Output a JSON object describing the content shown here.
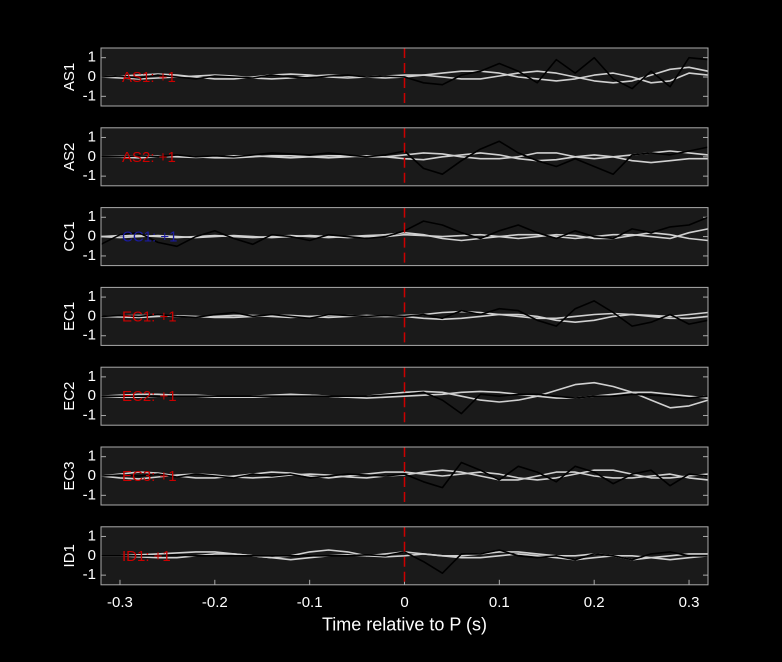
{
  "chart_data": [
    {
      "type": "line",
      "ylabel": "AS1",
      "annotation": "AS1: +1",
      "annotation_color": "#cc0000",
      "marker_x": 0,
      "marker_color": "#cc0000",
      "x": [
        -0.32,
        -0.3,
        -0.28,
        -0.26,
        -0.24,
        -0.22,
        -0.2,
        -0.18,
        -0.16,
        -0.14,
        -0.12,
        -0.1,
        -0.08,
        -0.06,
        -0.04,
        -0.02,
        0,
        0.02,
        0.04,
        0.06,
        0.08,
        0.1,
        0.12,
        0.14,
        0.16,
        0.18,
        0.2,
        0.22,
        0.24,
        0.26,
        0.28,
        0.3,
        0.32
      ],
      "series": [
        {
          "color": "#d0d0d0",
          "values": [
            0,
            0.05,
            0.1,
            0.15,
            0.1,
            0,
            -0.1,
            -0.1,
            0,
            0.1,
            0.15,
            0.1,
            0,
            -0.05,
            0,
            0.05,
            0.1,
            0.1,
            0,
            -0.1,
            -0.1,
            0.05,
            0.2,
            0.3,
            0.2,
            0,
            -0.2,
            -0.3,
            -0.2,
            0.1,
            0.4,
            0.5,
            0.3
          ]
        },
        {
          "color": "#d0d0d0",
          "values": [
            0,
            -0.05,
            -0.1,
            -0.05,
            0,
            0.05,
            0.1,
            0.05,
            -0.05,
            -0.1,
            -0.05,
            0.05,
            0.1,
            0.05,
            0,
            -0.05,
            0,
            0.1,
            0.2,
            0.3,
            0.3,
            0.2,
            0,
            -0.1,
            -0.2,
            -0.1,
            0.1,
            0.2,
            0,
            -0.3,
            -0.2,
            0.2,
            0.1
          ]
        },
        {
          "color": "#000000",
          "values": [
            0,
            0.05,
            -0.05,
            0.1,
            0,
            -0.1,
            0.05,
            0,
            -0.05,
            0.1,
            0,
            -0.05,
            0.05,
            0.1,
            0,
            0.05,
            0,
            -0.3,
            -0.4,
            0.1,
            0.3,
            0.7,
            0.3,
            -0.3,
            0.9,
            0.2,
            1.0,
            -0.1,
            -0.6,
            0.3,
            -0.5,
            1.0,
            0.9
          ]
        }
      ],
      "xlim": [
        -0.32,
        0.32
      ],
      "ylim": [
        -1.5,
        1.5
      ],
      "yticks": [
        -1,
        0,
        1
      ]
    },
    {
      "type": "line",
      "ylabel": "AS2",
      "annotation": "AS2: +1",
      "annotation_color": "#cc0000",
      "marker_x": 0,
      "marker_color": "#cc0000",
      "x": [
        -0.32,
        -0.3,
        -0.28,
        -0.26,
        -0.24,
        -0.22,
        -0.2,
        -0.18,
        -0.16,
        -0.14,
        -0.12,
        -0.1,
        -0.08,
        -0.06,
        -0.04,
        -0.02,
        0,
        0.02,
        0.04,
        0.06,
        0.08,
        0.1,
        0.12,
        0.14,
        0.16,
        0.18,
        0.2,
        0.22,
        0.24,
        0.26,
        0.28,
        0.3,
        0.32
      ],
      "series": [
        {
          "color": "#d0d0d0",
          "values": [
            0,
            0.02,
            0.05,
            0.03,
            0,
            -0.03,
            0,
            0.05,
            0.05,
            0,
            -0.05,
            0,
            0.05,
            0.05,
            0,
            0,
            0.1,
            0.2,
            0.15,
            0,
            -0.1,
            -0.1,
            0,
            0.2,
            0.2,
            0,
            -0.1,
            0,
            0.1,
            0.2,
            0.3,
            0.2,
            0.1
          ]
        },
        {
          "color": "#d0d0d0",
          "values": [
            0,
            -0.02,
            -0.05,
            0,
            0.03,
            0,
            -0.05,
            -0.05,
            0,
            0.05,
            0.05,
            0,
            -0.05,
            0,
            0.05,
            0,
            -0.1,
            -0.15,
            0,
            0.1,
            0.2,
            0.1,
            -0.1,
            -0.2,
            -0.15,
            0,
            0.1,
            0,
            -0.2,
            -0.3,
            -0.2,
            -0.1,
            -0.1
          ]
        },
        {
          "color": "#000000",
          "values": [
            0,
            0,
            0.05,
            0,
            0.1,
            0,
            0.05,
            0,
            0.1,
            0.2,
            0.15,
            0.1,
            0.2,
            0.1,
            0,
            0.1,
            0.3,
            -0.6,
            -0.9,
            -0.2,
            0.4,
            0.8,
            0.2,
            -0.2,
            -0.5,
            -0.1,
            -0.5,
            -0.9,
            0.1,
            0.2,
            0.1,
            0.3,
            0.5
          ]
        }
      ],
      "xlim": [
        -0.32,
        0.32
      ],
      "ylim": [
        -1.5,
        1.5
      ],
      "yticks": [
        -1,
        0,
        1
      ]
    },
    {
      "type": "line",
      "ylabel": "CC1",
      "annotation": "CC1: +1",
      "annotation_color": "#1a1aa0",
      "marker_x": 0,
      "marker_color": "#cc0000",
      "x": [
        -0.32,
        -0.3,
        -0.28,
        -0.26,
        -0.24,
        -0.22,
        -0.2,
        -0.18,
        -0.16,
        -0.14,
        -0.12,
        -0.1,
        -0.08,
        -0.06,
        -0.04,
        -0.02,
        0,
        0.02,
        0.04,
        0.06,
        0.08,
        0.1,
        0.12,
        0.14,
        0.16,
        0.18,
        0.2,
        0.22,
        0.24,
        0.26,
        0.28,
        0.3,
        0.32
      ],
      "series": [
        {
          "color": "#d0d0d0",
          "values": [
            0,
            0.05,
            0.05,
            0,
            -0.05,
            0,
            0.05,
            0,
            -0.05,
            0,
            0.05,
            0,
            -0.05,
            0,
            0.05,
            0.1,
            0.2,
            0.1,
            -0.1,
            -0.2,
            -0.1,
            0,
            0.1,
            0.1,
            0,
            -0.1,
            0,
            0.1,
            0.1,
            0,
            -0.1,
            0.2,
            0.4
          ]
        },
        {
          "color": "#d0d0d0",
          "values": [
            0,
            -0.05,
            0,
            0.05,
            0,
            -0.05,
            0,
            0.05,
            0,
            -0.05,
            0,
            0.05,
            0,
            -0.05,
            0,
            0,
            0.1,
            0.05,
            0,
            0.05,
            0.1,
            0,
            -0.1,
            0,
            0.1,
            0.05,
            -0.1,
            -0.1,
            0.05,
            0.2,
            0.1,
            -0.1,
            -0.2
          ]
        },
        {
          "color": "#000000",
          "values": [
            -0.4,
            0.1,
            0.2,
            -0.3,
            -0.5,
            0,
            0.3,
            -0.1,
            -0.4,
            0.1,
            0,
            -0.2,
            0.1,
            0,
            -0.1,
            0,
            0.3,
            0.8,
            0.6,
            0.2,
            -0.1,
            0.3,
            0.6,
            0.2,
            -0.1,
            0.3,
            0,
            -0.1,
            0.4,
            0.2,
            0.5,
            0.6,
            1.0
          ]
        }
      ],
      "xlim": [
        -0.32,
        0.32
      ],
      "ylim": [
        -1.5,
        1.5
      ],
      "yticks": [
        -1,
        0,
        1
      ]
    },
    {
      "type": "line",
      "ylabel": "EC1",
      "annotation": "EC1: +1",
      "annotation_color": "#cc0000",
      "marker_x": 0,
      "marker_color": "#cc0000",
      "x": [
        -0.32,
        -0.3,
        -0.28,
        -0.26,
        -0.24,
        -0.22,
        -0.2,
        -0.18,
        -0.16,
        -0.14,
        -0.12,
        -0.1,
        -0.08,
        -0.06,
        -0.04,
        -0.02,
        0,
        0.02,
        0.04,
        0.06,
        0.08,
        0.1,
        0.12,
        0.14,
        0.16,
        0.18,
        0.2,
        0.22,
        0.24,
        0.26,
        0.28,
        0.3,
        0.32
      ],
      "series": [
        {
          "color": "#d0d0d0",
          "values": [
            0,
            0.03,
            0.05,
            0.03,
            0,
            -0.03,
            0,
            0.05,
            0.05,
            0,
            -0.05,
            0,
            0.05,
            0.05,
            0,
            0,
            0.05,
            0.1,
            0.2,
            0.25,
            0.2,
            0.1,
            0,
            -0.1,
            -0.1,
            0,
            0.1,
            0.15,
            0.1,
            0,
            -0.1,
            -0.1,
            0
          ]
        },
        {
          "color": "#d0d0d0",
          "values": [
            0,
            -0.03,
            -0.05,
            0,
            0.03,
            0,
            -0.05,
            -0.05,
            0,
            0.05,
            0.05,
            0,
            -0.05,
            0,
            0.05,
            0,
            0,
            -0.1,
            -0.15,
            -0.1,
            0,
            0.1,
            0.1,
            0,
            -0.2,
            -0.3,
            -0.2,
            0,
            0.1,
            0.05,
            0,
            0.1,
            0.2
          ]
        },
        {
          "color": "#000000",
          "values": [
            0,
            0.05,
            0,
            0.1,
            0,
            -0.05,
            0.1,
            0.2,
            0,
            0.1,
            0,
            -0.1,
            0.1,
            0.05,
            0,
            0.05,
            0,
            0.1,
            -0.1,
            0.3,
            0.1,
            0.4,
            0.3,
            -0.2,
            -0.5,
            0.4,
            0.8,
            0.2,
            -0.5,
            -0.3,
            0.1,
            -0.4,
            -0.2
          ]
        }
      ],
      "xlim": [
        -0.32,
        0.32
      ],
      "ylim": [
        -1.5,
        1.5
      ],
      "yticks": [
        -1,
        0,
        1
      ]
    },
    {
      "type": "line",
      "ylabel": "EC2",
      "annotation": "EC2: +1",
      "annotation_color": "#cc0000",
      "marker_x": 0,
      "marker_color": "#cc0000",
      "x": [
        -0.32,
        -0.3,
        -0.28,
        -0.26,
        -0.24,
        -0.22,
        -0.2,
        -0.18,
        -0.16,
        -0.14,
        -0.12,
        -0.1,
        -0.08,
        -0.06,
        -0.04,
        -0.02,
        0,
        0.02,
        0.04,
        0.06,
        0.08,
        0.1,
        0.12,
        0.14,
        0.16,
        0.18,
        0.2,
        0.22,
        0.24,
        0.26,
        0.28,
        0.3,
        0.32
      ],
      "series": [
        {
          "color": "#d0d0d0",
          "values": [
            0,
            0.05,
            0.1,
            0.1,
            0.05,
            0,
            -0.05,
            -0.05,
            0,
            0.05,
            0.1,
            0.05,
            0,
            -0.05,
            0,
            0.1,
            0.2,
            0.25,
            0.2,
            0,
            -0.2,
            -0.3,
            -0.2,
            0,
            0.3,
            0.6,
            0.7,
            0.5,
            0.2,
            -0.2,
            -0.6,
            -0.5,
            -0.2
          ]
        },
        {
          "color": "#d0d0d0",
          "values": [
            0,
            -0.05,
            -0.05,
            0,
            0.05,
            0.05,
            0,
            -0.05,
            -0.05,
            0,
            0.05,
            0.05,
            0,
            -0.05,
            -0.1,
            -0.05,
            0,
            0.05,
            0.1,
            0.2,
            0.25,
            0.2,
            0.1,
            0,
            -0.1,
            -0.1,
            0,
            0.1,
            0.2,
            0.2,
            0.1,
            0,
            -0.1
          ]
        },
        {
          "color": "#000000",
          "values": [
            0,
            0,
            0,
            0,
            0,
            0,
            0,
            0,
            0,
            0,
            0,
            0,
            0,
            0,
            0,
            0.05,
            0.1,
            0.2,
            -0.2,
            -0.9,
            0.1,
            0,
            0.1,
            0.1,
            0,
            -0.1,
            0,
            0,
            0.1,
            0.05,
            0,
            -0.1,
            0
          ]
        }
      ],
      "xlim": [
        -0.32,
        0.32
      ],
      "ylim": [
        -1.5,
        1.5
      ],
      "yticks": [
        -1,
        0,
        1
      ]
    },
    {
      "type": "line",
      "ylabel": "EC3",
      "annotation": "EC3: +1",
      "annotation_color": "#cc0000",
      "marker_x": 0,
      "marker_color": "#cc0000",
      "x": [
        -0.32,
        -0.3,
        -0.28,
        -0.26,
        -0.24,
        -0.22,
        -0.2,
        -0.18,
        -0.16,
        -0.14,
        -0.12,
        -0.1,
        -0.08,
        -0.06,
        -0.04,
        -0.02,
        0,
        0.02,
        0.04,
        0.06,
        0.08,
        0.1,
        0.12,
        0.14,
        0.16,
        0.18,
        0.2,
        0.22,
        0.24,
        0.26,
        0.28,
        0.3,
        0.32
      ],
      "series": [
        {
          "color": "#d0d0d0",
          "values": [
            0,
            0.1,
            0.2,
            0.15,
            0,
            -0.1,
            -0.1,
            0,
            0.1,
            0.2,
            0.15,
            0,
            -0.1,
            0,
            0.1,
            0.2,
            0.2,
            0.1,
            0,
            0.1,
            0.2,
            0.1,
            -0.1,
            -0.2,
            -0.1,
            0.1,
            0.3,
            0.3,
            0.1,
            -0.1,
            -0.1,
            0,
            0.1
          ]
        },
        {
          "color": "#d0d0d0",
          "values": [
            0,
            -0.1,
            -0.15,
            -0.05,
            0.05,
            0.1,
            0.05,
            -0.05,
            -0.1,
            -0.05,
            0.05,
            0.1,
            0.05,
            -0.05,
            -0.1,
            0,
            0.05,
            0.2,
            0.3,
            0.2,
            0,
            -0.2,
            -0.2,
            0,
            0.2,
            0.2,
            0,
            -0.1,
            -0.1,
            0,
            0.1,
            -0.1,
            -0.2
          ]
        },
        {
          "color": "#000000",
          "values": [
            0,
            0.05,
            0,
            0.1,
            -0.05,
            0.1,
            0,
            -0.1,
            0.1,
            0,
            0.1,
            -0.1,
            0,
            0.1,
            0.05,
            0,
            0.1,
            -0.3,
            -0.6,
            0.7,
            0.3,
            -0.2,
            0.5,
            0.2,
            -0.3,
            0.5,
            0.2,
            -0.4,
            0.1,
            0.3,
            -0.5,
            0.1,
            0
          ]
        }
      ],
      "xlim": [
        -0.32,
        0.32
      ],
      "ylim": [
        -1.5,
        1.5
      ],
      "yticks": [
        -1,
        0,
        1
      ]
    },
    {
      "type": "line",
      "ylabel": "ID1",
      "annotation": "ID1: +1",
      "annotation_color": "#cc0000",
      "marker_x": 0,
      "marker_color": "#cc0000",
      "x": [
        -0.32,
        -0.3,
        -0.28,
        -0.26,
        -0.24,
        -0.22,
        -0.2,
        -0.18,
        -0.16,
        -0.14,
        -0.12,
        -0.1,
        -0.08,
        -0.06,
        -0.04,
        -0.02,
        0,
        0.02,
        0.04,
        0.06,
        0.08,
        0.1,
        0.12,
        0.14,
        0.16,
        0.18,
        0.2,
        0.22,
        0.24,
        0.26,
        0.28,
        0.3,
        0.32
      ],
      "series": [
        {
          "color": "#d0d0d0",
          "values": [
            0,
            0,
            0.05,
            0.1,
            0.15,
            0.2,
            0.2,
            0.1,
            0,
            -0.1,
            0,
            0.2,
            0.3,
            0.2,
            0,
            0.1,
            0.2,
            0.1,
            0,
            0,
            0.1,
            0.2,
            0.2,
            0.1,
            0,
            0,
            0.1,
            0,
            -0.2,
            -0.1,
            0,
            0.1,
            0.1
          ]
        },
        {
          "color": "#d0d0d0",
          "values": [
            0,
            0,
            -0.05,
            -0.1,
            -0.1,
            0,
            0.1,
            0.1,
            0,
            -0.1,
            -0.2,
            -0.1,
            0,
            0.05,
            0,
            -0.05,
            0,
            0.1,
            0,
            -0.1,
            -0.1,
            0,
            0.1,
            0,
            -0.1,
            -0.2,
            -0.1,
            0,
            0,
            -0.1,
            -0.2,
            -0.1,
            0
          ]
        },
        {
          "color": "#000000",
          "values": [
            0,
            0,
            0,
            0,
            0.05,
            0,
            0,
            0,
            0,
            0,
            0,
            0,
            0,
            0,
            0.05,
            0,
            0.2,
            -0.3,
            -0.9,
            0.1,
            0.1,
            0.3,
            0,
            -0.1,
            0,
            -0.2,
            0.1,
            0,
            -0.2,
            0.1,
            0.2,
            0,
            0
          ]
        }
      ],
      "xlim": [
        -0.32,
        0.32
      ],
      "ylim": [
        -1.5,
        1.5
      ],
      "yticks": [
        -1,
        0,
        1
      ],
      "xticks": [
        -0.3,
        -0.2,
        -0.1,
        0,
        0.1,
        0.2,
        0.3
      ],
      "xlabel": "Time relative to P (s)"
    }
  ]
}
